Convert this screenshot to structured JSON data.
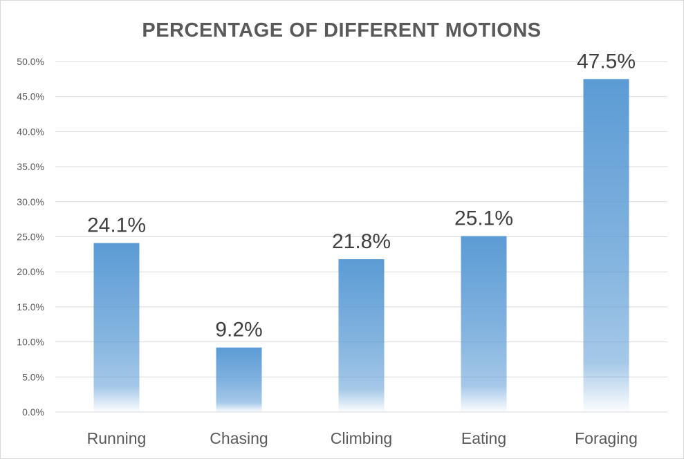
{
  "chart_data": {
    "type": "bar",
    "title": "PERCENTAGE OF DIFFERENT MOTIONS",
    "categories": [
      "Running",
      "Chasing",
      "Climbing",
      "Eating",
      "Foraging"
    ],
    "values": [
      24.1,
      9.2,
      21.8,
      25.1,
      47.5
    ],
    "data_labels": [
      "24.1%",
      "9.2%",
      "21.8%",
      "25.1%",
      "47.5%"
    ],
    "y_ticks": [
      "0.0%",
      "5.0%",
      "10.0%",
      "15.0%",
      "20.0%",
      "25.0%",
      "30.0%",
      "35.0%",
      "40.0%",
      "45.0%",
      "50.0%"
    ],
    "ylim": [
      0,
      50
    ],
    "grid": true,
    "legend": "none",
    "bar_color": "#5b9bd5"
  }
}
